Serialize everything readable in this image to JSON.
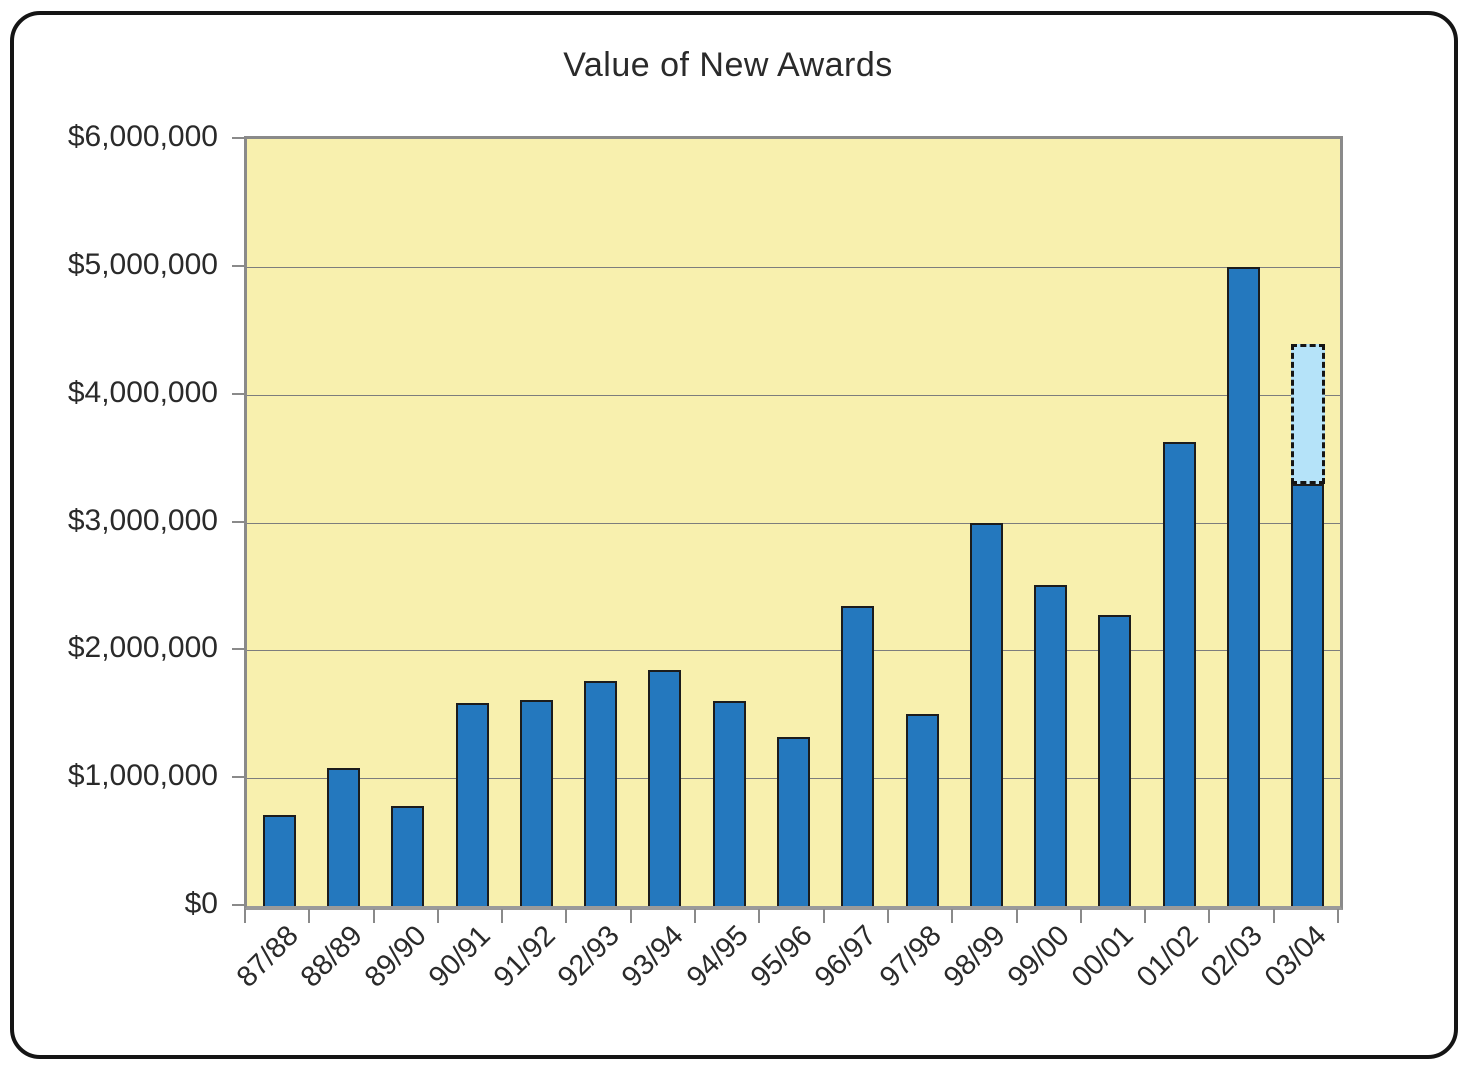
{
  "title": "Value of New Awards",
  "chart_data": {
    "type": "bar",
    "title": "Value of New Awards",
    "categories": [
      "87/88",
      "88/89",
      "89/90",
      "90/91",
      "91/92",
      "92/93",
      "93/94",
      "94/95",
      "95/96",
      "96/97",
      "97/98",
      "98/99",
      "99/00",
      "00/01",
      "01/02",
      "02/03",
      "03/04"
    ],
    "values": [
      710000,
      1080000,
      780000,
      1590000,
      1610000,
      1760000,
      1850000,
      1600000,
      1320000,
      2350000,
      1500000,
      3000000,
      2510000,
      2280000,
      3630000,
      5000000,
      3300000
    ],
    "projected_segment": {
      "category": "03/04",
      "from": 3300000,
      "to": 4400000,
      "style": "dashed"
    },
    "ylim": [
      0,
      6000000
    ],
    "ytick_interval": 1000000,
    "ytick_labels": [
      "$0",
      "$1,000,000",
      "$2,000,000",
      "$3,000,000",
      "$4,000,000",
      "$5,000,000",
      "$6,000,000"
    ],
    "xlabel": "",
    "ylabel": "",
    "grid": true,
    "legend": false,
    "colors": {
      "plot_background": "#F8F0AE",
      "bar_fill": "#2478BE",
      "bar_border": "#1c1c1c",
      "projected_fill": "#B5E3F9",
      "projected_border": "#151515",
      "gridline": "#7d7d7d",
      "axis": "#8a8a8a",
      "text": "#2a2a2a",
      "page_border": "#151515"
    }
  }
}
